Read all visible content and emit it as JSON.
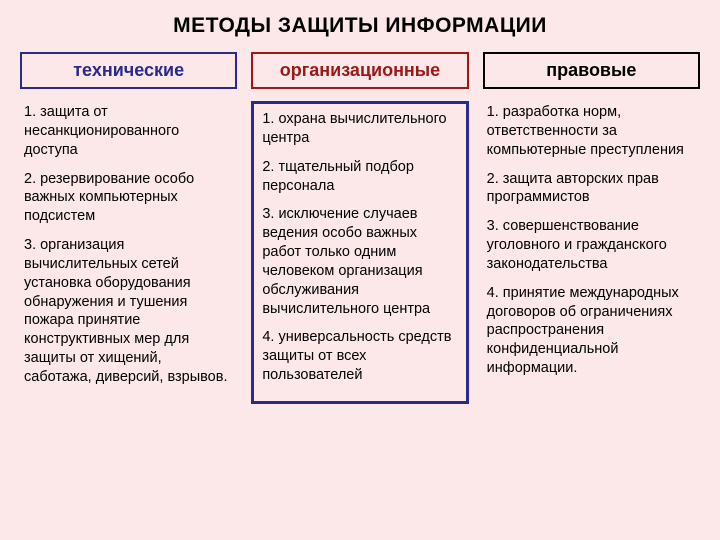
{
  "title": "МЕТОДЫ ЗАЩИТЫ ИНФОРМАЦИИ",
  "columns": {
    "technical": {
      "header": "технические",
      "items": [
        "1. защита от несанкционированного доступа",
        "2. резервирование особо важных компьютерных подсистем",
        "3. организация вычислительных сетей установка оборудования обнаружения и тушения пожара принятие конструктивных мер для защиты от хищений, саботажа, диверсий, взрывов."
      ]
    },
    "organizational": {
      "header": "организационные",
      "items": [
        "1. охрана вычислительного центра",
        "2. тщательный подбор персонала",
        "3. исключение случаев ведения особо важных работ только одним человеком организация обслуживания вычислительного центра",
        "4. универсальность средств защиты от всех пользователей"
      ]
    },
    "legal": {
      "header": "правовые",
      "items": [
        "1. разработка норм, ответственности за компьютерные преступления",
        "2. защита авторских прав программистов",
        "3. совершенствование уголовного и гражданского законодательства",
        "4. принятие международных договоров об ограничениях распространения конфиденциальной информации."
      ]
    }
  },
  "styling": {
    "background_color": "#fce8e8",
    "title_fontsize": 21,
    "header_fontsize": 18,
    "body_fontsize": 14.5,
    "col1_border_color": "#2a2a8a",
    "col2_border_color": "#9a1818",
    "col3_border_color": "#000000",
    "col2_body_border_color": "#2a2a8a",
    "font_family": "Arial"
  }
}
